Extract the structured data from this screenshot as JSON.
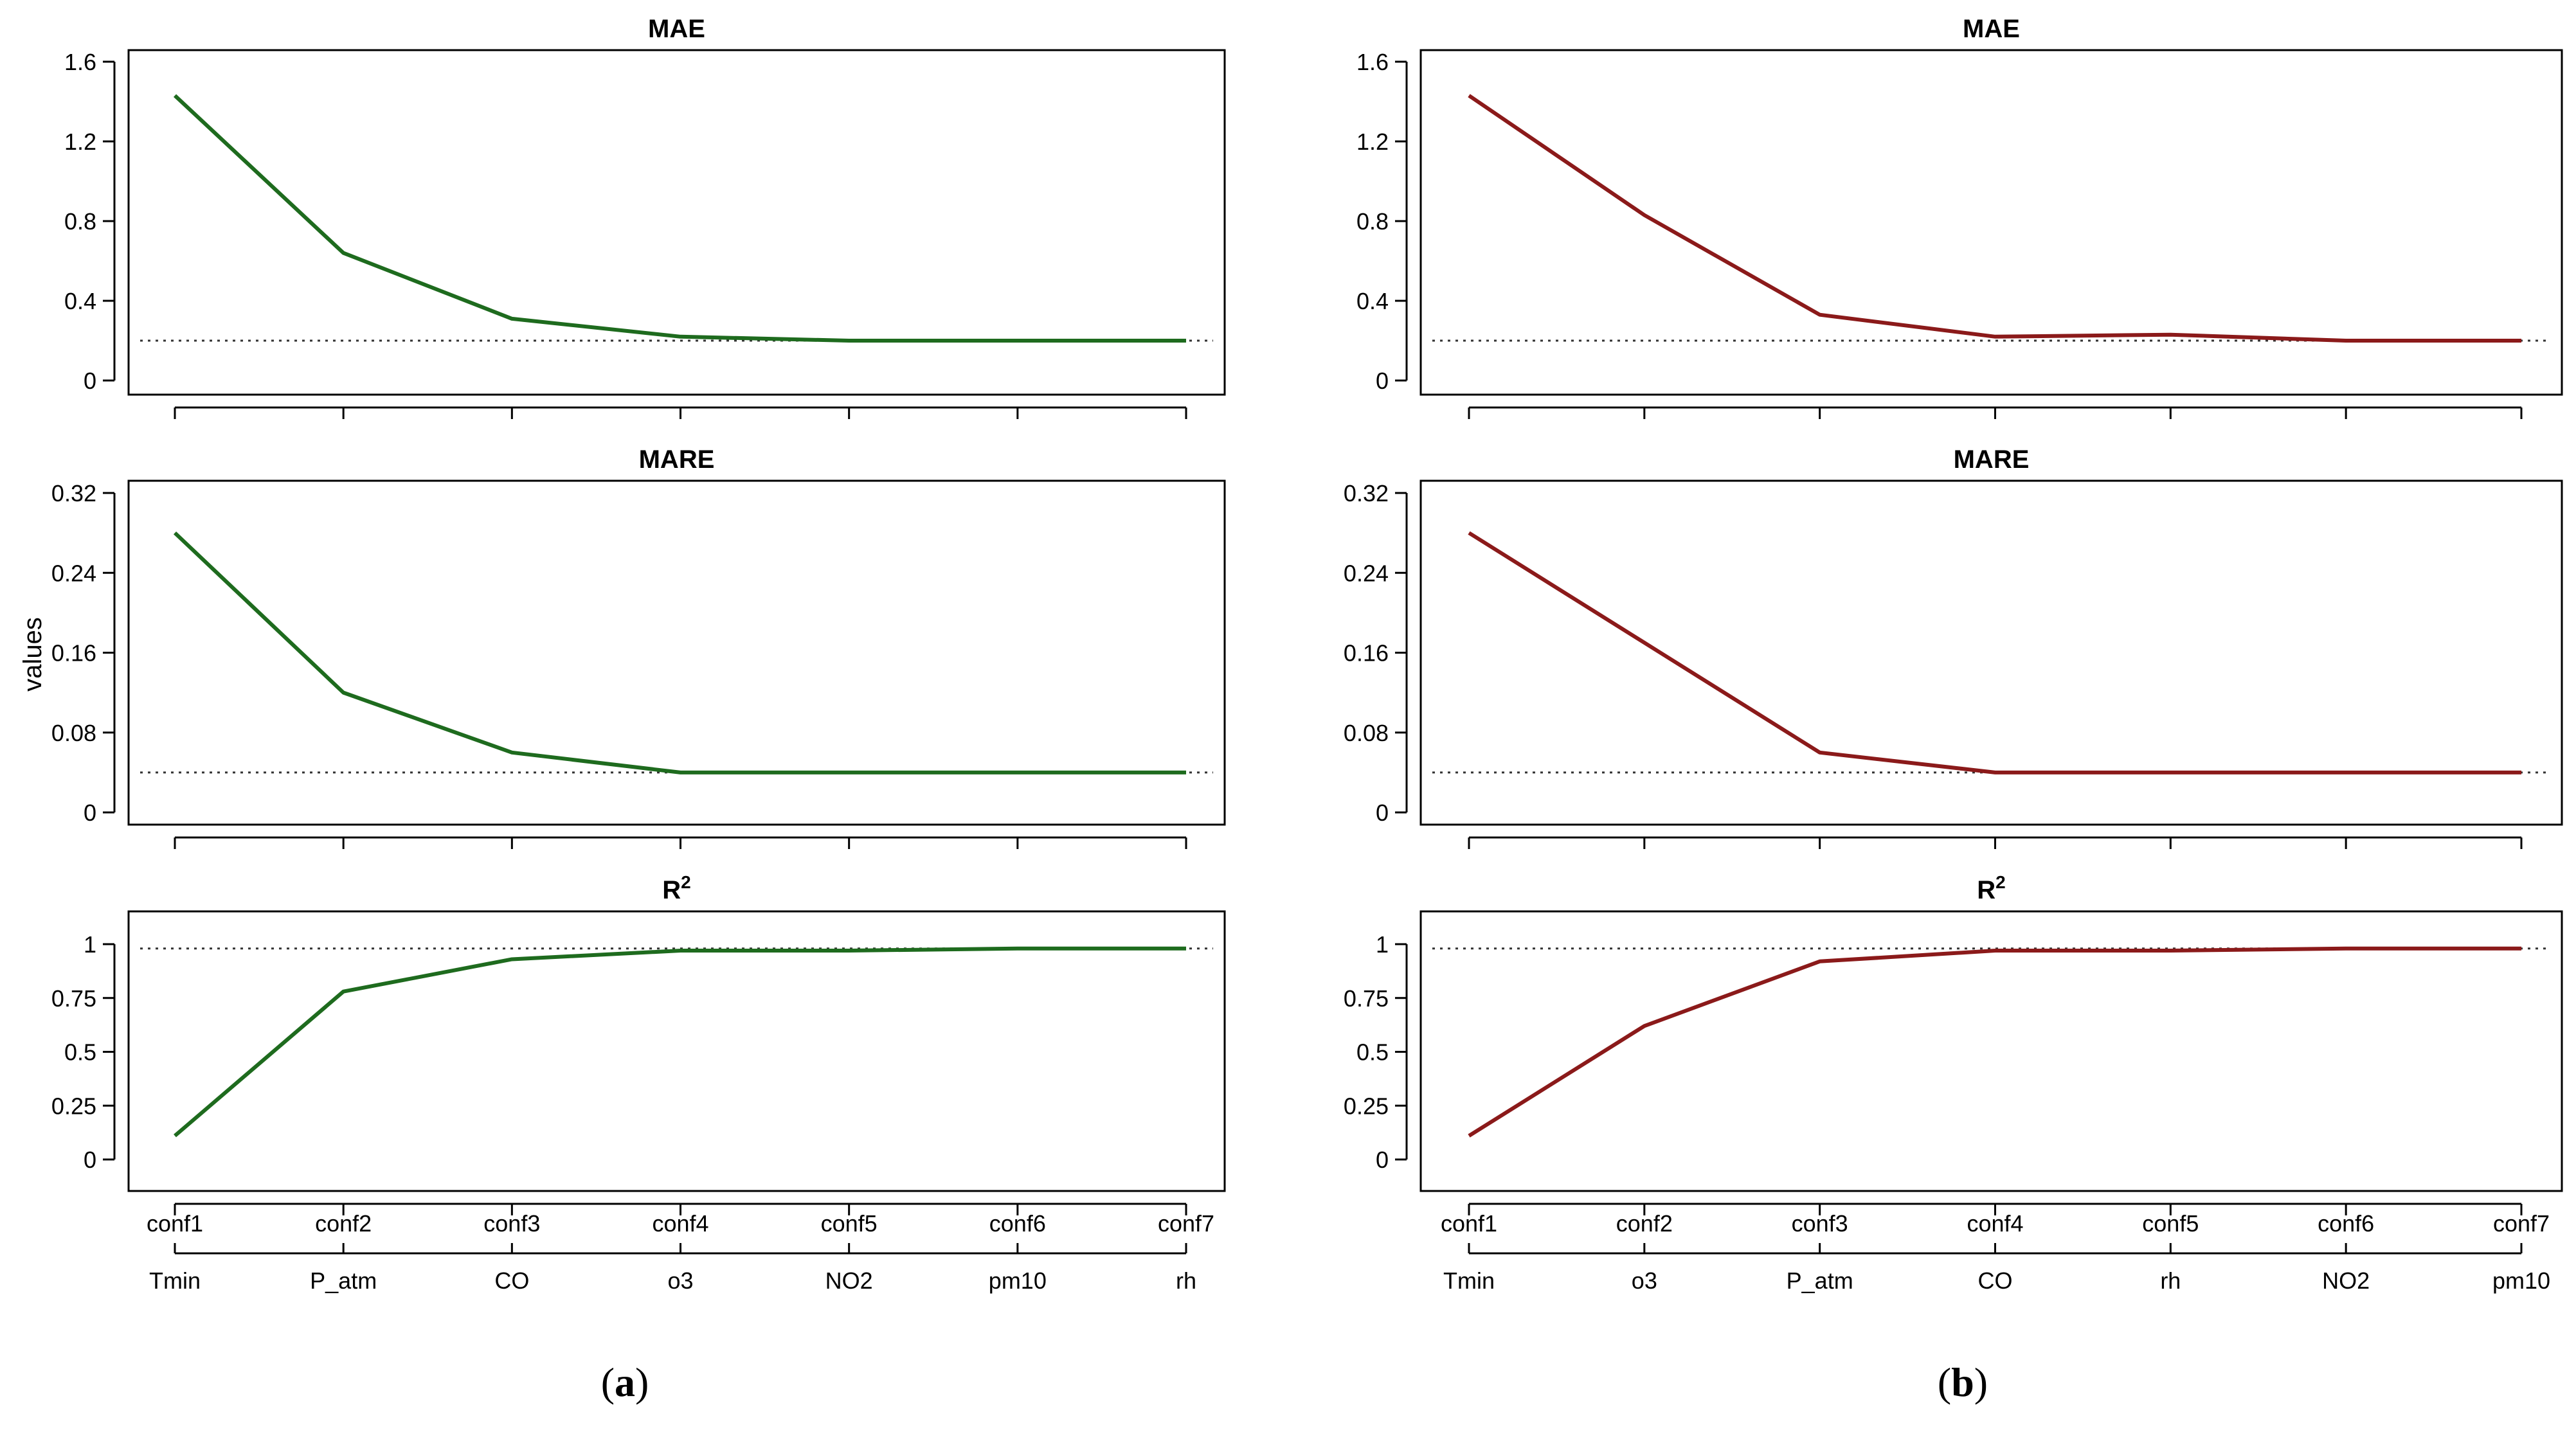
{
  "ylabel": "values",
  "chart_data": [
    {
      "type": "line",
      "caption_letter": "a",
      "color": "#1e6b1e",
      "categories": [
        "conf1",
        "conf2",
        "conf3",
        "conf4",
        "conf5",
        "conf6",
        "conf7"
      ],
      "variables": [
        "Tmin",
        "P_atm",
        "CO",
        "o3",
        "NO2",
        "pm10",
        "rh"
      ],
      "panels": [
        {
          "title": "MAE",
          "ylim": [
            0,
            1.6
          ],
          "yticks": [
            "0",
            "0.4",
            "0.8",
            "1.2",
            "1.6"
          ],
          "ytick_values": [
            0,
            0.4,
            0.8,
            1.2,
            1.6
          ],
          "reference": 0.2,
          "values": [
            1.43,
            0.64,
            0.31,
            0.22,
            0.2,
            0.2,
            0.2
          ]
        },
        {
          "title": "MARE",
          "ylim": [
            0,
            0.32
          ],
          "yticks": [
            "0",
            "0.08",
            "0.16",
            "0.24",
            "0.32"
          ],
          "ytick_values": [
            0,
            0.08,
            0.16,
            0.24,
            0.32
          ],
          "reference": 0.04,
          "values": [
            0.28,
            0.12,
            0.06,
            0.04,
            0.04,
            0.04,
            0.04
          ]
        },
        {
          "title": "R",
          "title_sup": "2",
          "ylim": [
            0,
            1
          ],
          "yticks": [
            "0",
            "0.25",
            "0.5",
            "0.75",
            "1"
          ],
          "ytick_values": [
            0,
            0.25,
            0.5,
            0.75,
            1
          ],
          "reference": 0.98,
          "values": [
            0.11,
            0.78,
            0.93,
            0.97,
            0.97,
            0.98,
            0.98
          ]
        }
      ]
    },
    {
      "type": "line",
      "caption_letter": "b",
      "color": "#8b1a1a",
      "categories": [
        "conf1",
        "conf2",
        "conf3",
        "conf4",
        "conf5",
        "conf6",
        "conf7"
      ],
      "variables": [
        "Tmin",
        "o3",
        "P_atm",
        "CO",
        "rh",
        "NO2",
        "pm10"
      ],
      "panels": [
        {
          "title": "MAE",
          "ylim": [
            0,
            1.6
          ],
          "yticks": [
            "0",
            "0.4",
            "0.8",
            "1.2",
            "1.6"
          ],
          "ytick_values": [
            0,
            0.4,
            0.8,
            1.2,
            1.6
          ],
          "reference": 0.2,
          "values": [
            1.43,
            0.83,
            0.33,
            0.22,
            0.23,
            0.2,
            0.2
          ]
        },
        {
          "title": "MARE",
          "ylim": [
            0,
            0.32
          ],
          "yticks": [
            "0",
            "0.08",
            "0.16",
            "0.24",
            "0.32"
          ],
          "ytick_values": [
            0,
            0.08,
            0.16,
            0.24,
            0.32
          ],
          "reference": 0.04,
          "values": [
            0.28,
            0.17,
            0.06,
            0.04,
            0.04,
            0.04,
            0.04
          ]
        },
        {
          "title": "R",
          "title_sup": "2",
          "ylim": [
            0,
            1
          ],
          "yticks": [
            "0",
            "0.25",
            "0.5",
            "0.75",
            "1"
          ],
          "ytick_values": [
            0,
            0.25,
            0.5,
            0.75,
            1
          ],
          "reference": 0.98,
          "values": [
            0.11,
            0.62,
            0.92,
            0.97,
            0.97,
            0.98,
            0.98
          ]
        }
      ]
    }
  ]
}
